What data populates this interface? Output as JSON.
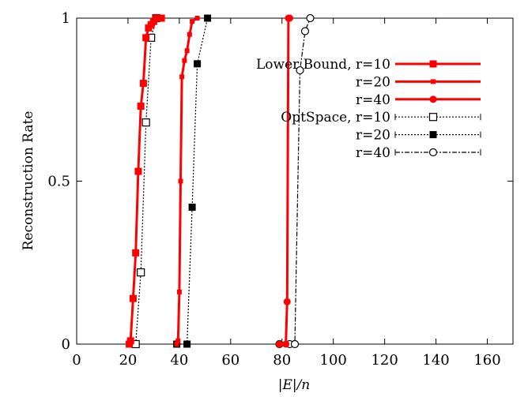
{
  "chart_data": {
    "type": "line",
    "xlabel": "|E|/n",
    "ylabel": "Reconstruction Rate",
    "xlim": [
      0,
      170
    ],
    "ylim": [
      0,
      1
    ],
    "x_ticks": [
      "0",
      "20",
      "40",
      "60",
      "80",
      "100",
      "120",
      "140",
      "160"
    ],
    "y_ticks": [
      "0",
      "0.5",
      "1"
    ],
    "grid": false,
    "legend_position": "top-right",
    "series": [
      {
        "name": "Lower Bound, r=10",
        "color": "#ff0000",
        "line": "solid",
        "marker": "filled-square",
        "points": [
          [
            20.5,
            0.0
          ],
          [
            21.0,
            0.01
          ],
          [
            22.0,
            0.14
          ],
          [
            23.0,
            0.28
          ],
          [
            24.0,
            0.53
          ],
          [
            25.0,
            0.73
          ],
          [
            26.0,
            0.8
          ],
          [
            27.0,
            0.94
          ],
          [
            28.0,
            0.97
          ],
          [
            29.0,
            0.98
          ],
          [
            30.0,
            0.99
          ],
          [
            31.0,
            1.0
          ],
          [
            32.0,
            1.0
          ],
          [
            33.0,
            1.0
          ]
        ]
      },
      {
        "name": "r=20",
        "color": "#ff0000",
        "line": "solid",
        "marker": "small-filled-square",
        "points": [
          [
            39.0,
            0.0
          ],
          [
            39.5,
            0.01
          ],
          [
            40.0,
            0.16
          ],
          [
            40.5,
            0.5
          ],
          [
            41.0,
            0.82
          ],
          [
            42.0,
            0.87
          ],
          [
            43.0,
            0.9
          ],
          [
            44.0,
            0.95
          ],
          [
            45.0,
            0.99
          ],
          [
            47.0,
            1.0
          ]
        ]
      },
      {
        "name": "r=40",
        "color": "#ff0000",
        "line": "solid",
        "marker": "filled-circle",
        "points": [
          [
            79.0,
            0.0
          ],
          [
            81.5,
            0.0
          ],
          [
            82.0,
            0.13
          ],
          [
            82.5,
            1.0
          ],
          [
            83.0,
            1.0
          ]
        ]
      },
      {
        "name": "OptSpace, r=10",
        "color": "#000000",
        "line": "dotted",
        "marker": "open-square",
        "points": [
          [
            23.0,
            0.0
          ],
          [
            25.0,
            0.22
          ],
          [
            27.0,
            0.68
          ],
          [
            29.0,
            0.94
          ],
          [
            31.0,
            1.0
          ]
        ]
      },
      {
        "name": "r=20",
        "color": "#000000",
        "line": "dotted",
        "marker": "filled-square",
        "points": [
          [
            39.0,
            0.0
          ],
          [
            43.0,
            0.0
          ],
          [
            45.0,
            0.42
          ],
          [
            47.0,
            0.86
          ],
          [
            51.0,
            1.0
          ]
        ]
      },
      {
        "name": "r=40",
        "color": "#000000",
        "line": "dashdot",
        "marker": "open-circle",
        "points": [
          [
            79.0,
            0.0
          ],
          [
            83.0,
            0.0
          ],
          [
            85.0,
            0.0
          ],
          [
            87.0,
            0.84
          ],
          [
            89.0,
            0.96
          ],
          [
            91.0,
            1.0
          ]
        ]
      }
    ]
  }
}
